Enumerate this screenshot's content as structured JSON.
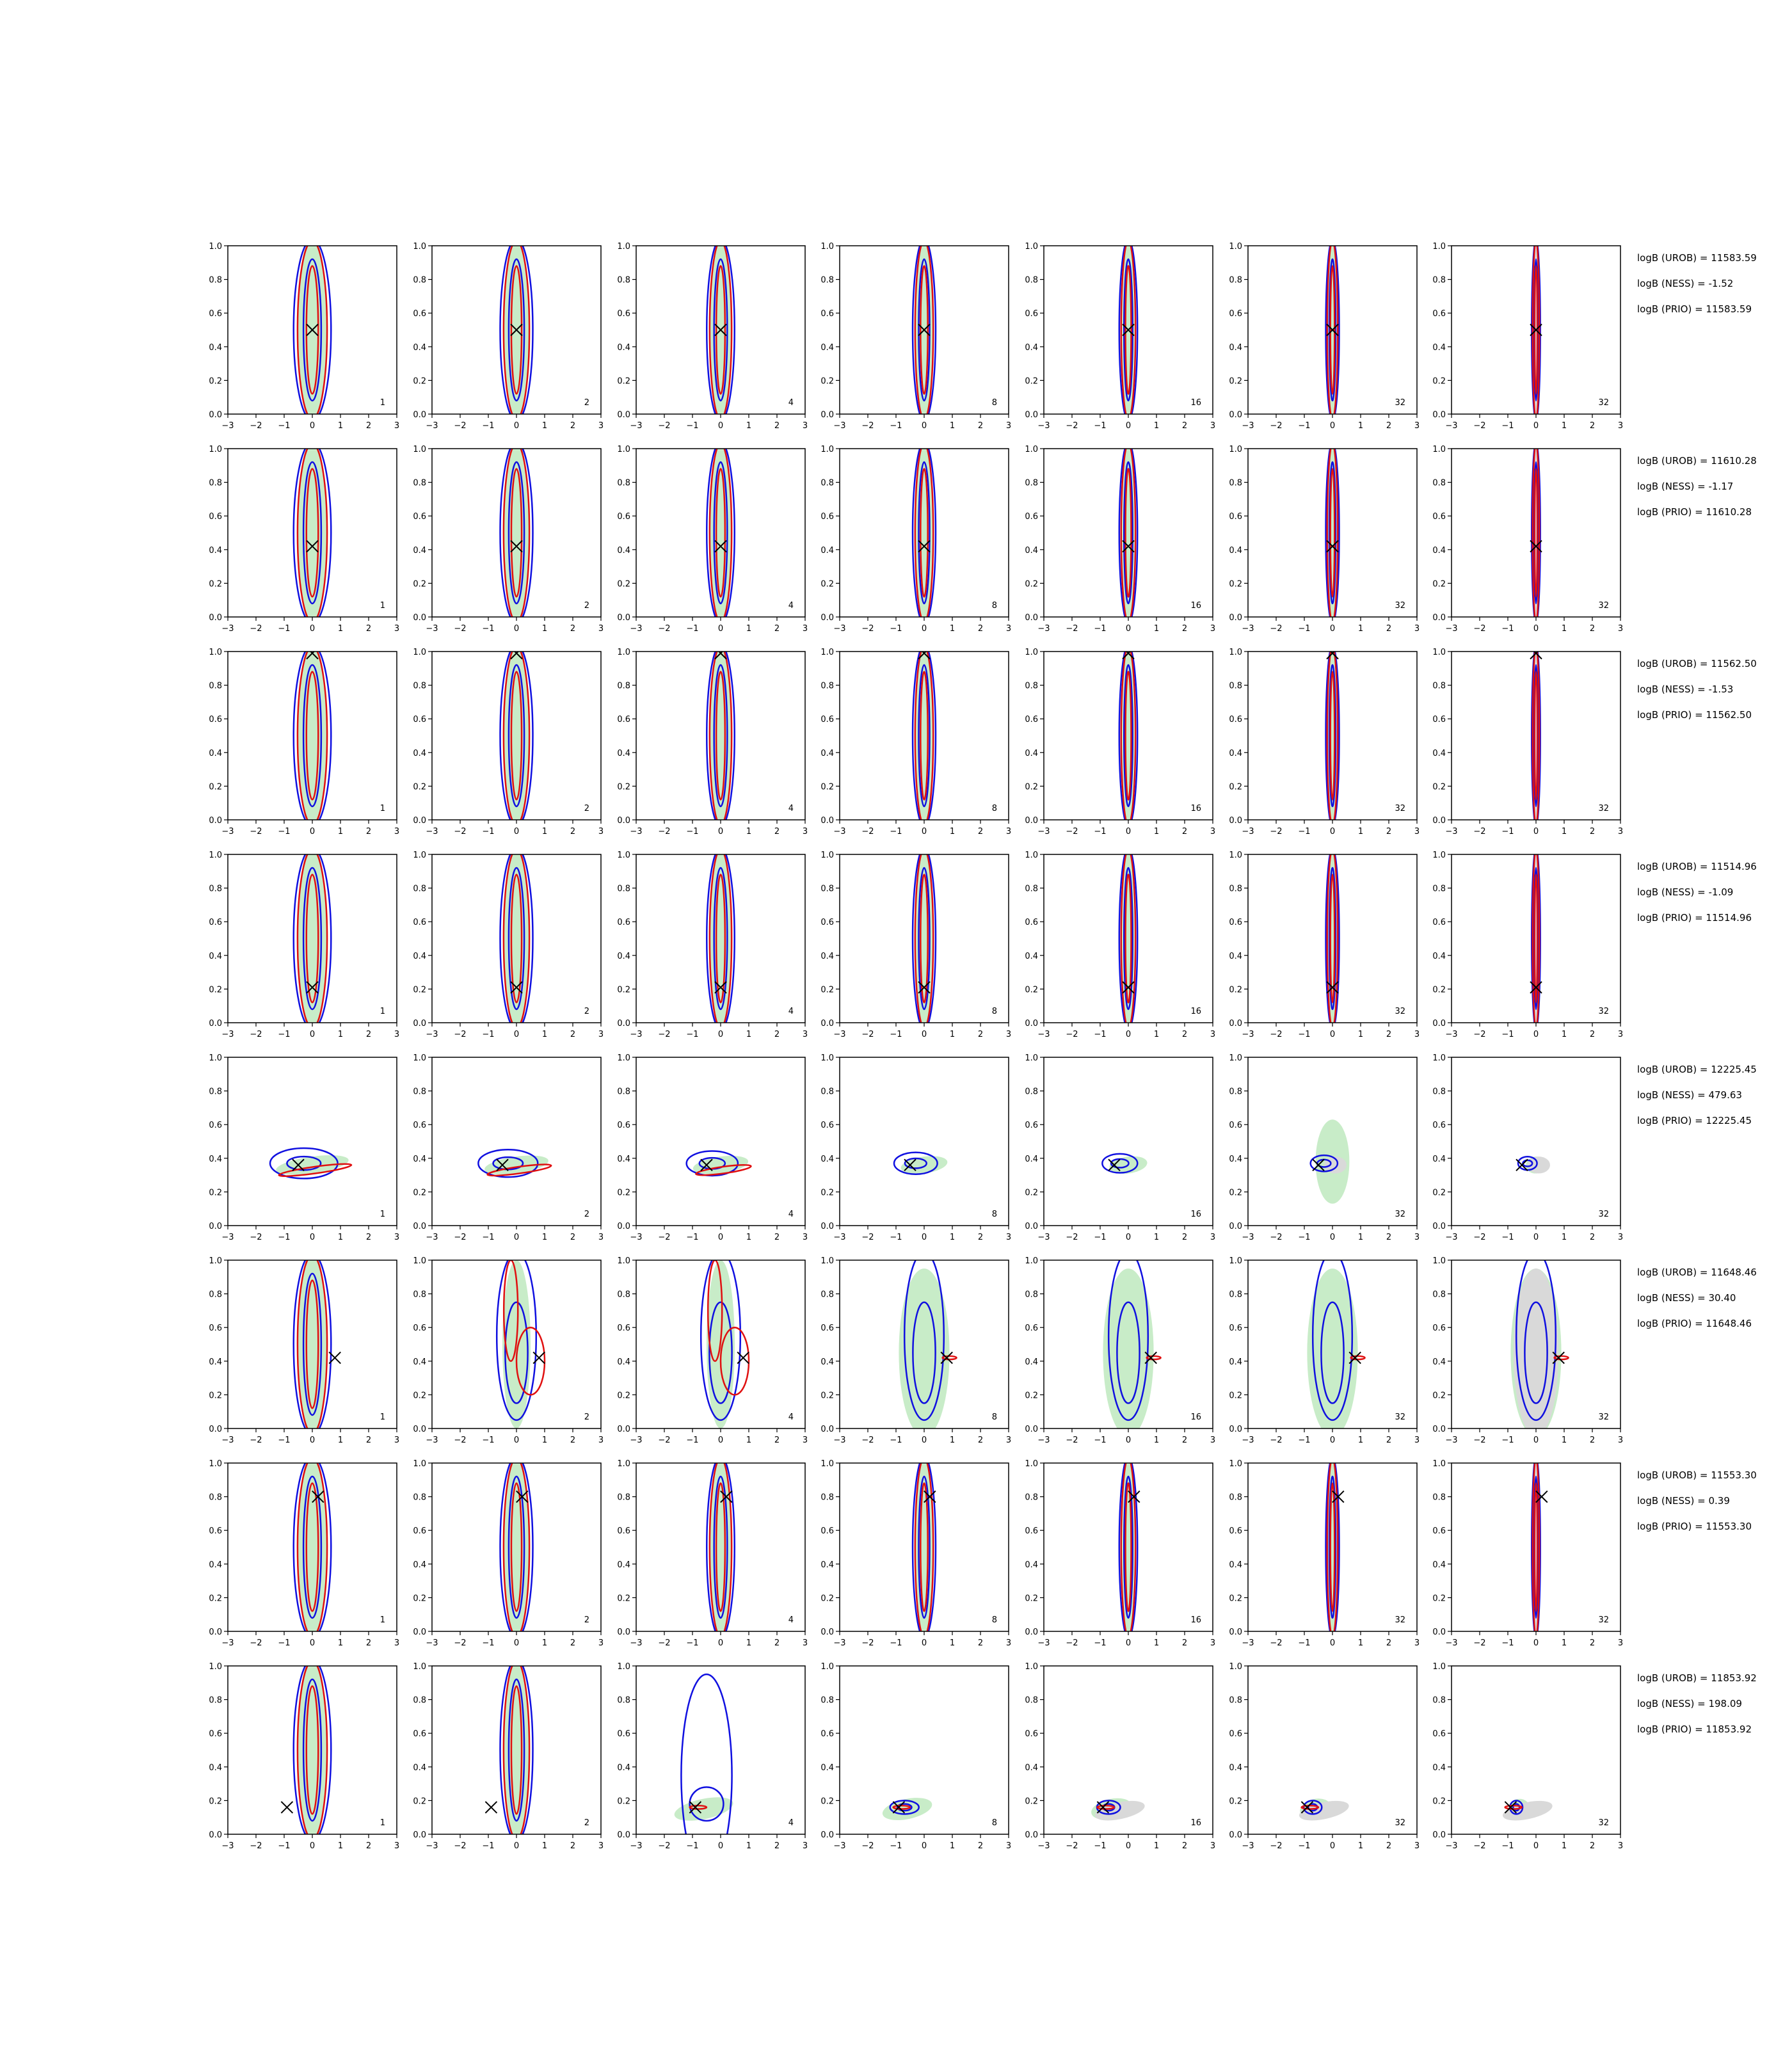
{
  "chart_data": {
    "type": "contour",
    "grid": {
      "rows": 8,
      "cols": 7
    },
    "xlim": [
      -3,
      3
    ],
    "ylim": [
      0.0,
      1.0
    ],
    "xticks": [
      "−3",
      "−2",
      "−1",
      "0",
      "1",
      "2",
      "3"
    ],
    "yticks": [
      "0.0",
      "0.2",
      "0.4",
      "0.6",
      "0.8",
      "1.0"
    ],
    "panel_labels": [
      "1",
      "2",
      "4",
      "8",
      "16",
      "32",
      "32"
    ],
    "colors": {
      "red": "#e01010",
      "blue": "#1010e0",
      "green": "#c8ecc8",
      "grey": "#d9d9d9",
      "marker": "#000000"
    },
    "rows": [
      {
        "truth": {
          "x": 0.0,
          "y": 0.5
        },
        "annotations": [
          "logB (UROB) = 11583.59",
          "logB (NESS) = -1.52",
          "logB (PRIO) = 11583.59"
        ]
      },
      {
        "truth": {
          "x": 0.0,
          "y": 0.42
        },
        "annotations": [
          "logB (UROB) = 11610.28",
          "logB (NESS) = -1.17",
          "logB (PRIO) = 11610.28"
        ]
      },
      {
        "truth": {
          "x": 0.0,
          "y": 0.99
        },
        "annotations": [
          "logB (UROB) = 11562.50",
          "logB (NESS) = -1.53",
          "logB (PRIO) = 11562.50"
        ]
      },
      {
        "truth": {
          "x": 0.0,
          "y": 0.21
        },
        "annotations": [
          "logB (UROB) = 11514.96",
          "logB (NESS) = -1.09",
          "logB (PRIO) = 11514.96"
        ]
      },
      {
        "truth": {
          "x": -0.5,
          "y": 0.36
        },
        "annotations": [
          "logB (UROB) = 12225.45",
          "logB (NESS) = 479.63",
          "logB (PRIO) = 12225.45"
        ]
      },
      {
        "truth": {
          "x": 0.8,
          "y": 0.42
        },
        "annotations": [
          "logB (UROB) = 11648.46",
          "logB (NESS) = 30.40",
          "logB (PRIO) = 11648.46"
        ]
      },
      {
        "truth": {
          "x": 0.2,
          "y": 0.8
        },
        "annotations": [
          "logB (UROB) = 11553.30",
          "logB (NESS) = 0.39",
          "logB (PRIO) = 11553.30"
        ]
      },
      {
        "truth": {
          "x": -0.9,
          "y": 0.16
        },
        "annotations": [
          "logB (UROB) = 11853.92",
          "logB (NESS) = 198.09",
          "logB (PRIO) = 11853.92"
        ]
      }
    ]
  }
}
